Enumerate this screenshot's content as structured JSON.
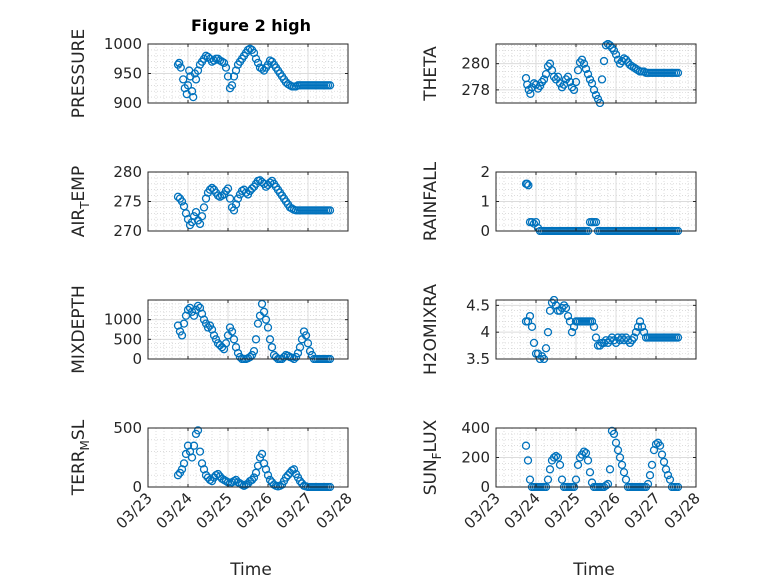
{
  "figure": {
    "title": "Figure 2 high",
    "marker_color": "#0072BD",
    "time_ticks": [
      "03/23",
      "03/24",
      "03/25",
      "03/26",
      "03/27",
      "03/28"
    ],
    "time_label": "Time"
  },
  "chart_data": [
    {
      "type": "scatter",
      "name": "PRESSURE",
      "ylabel": "PRESSURE",
      "ylim": [
        900,
        1000
      ],
      "yticks": [
        900,
        950,
        1000
      ],
      "xlim": [
        0,
        5
      ],
      "grid": true,
      "minor_grid": true,
      "show_x_ticklabels": false,
      "x": [
        0.75,
        0.78,
        0.82,
        0.88,
        0.92,
        0.97,
        1.0,
        1.03,
        1.06,
        1.1,
        1.13,
        1.17,
        1.2,
        1.25,
        1.3,
        1.35,
        1.4,
        1.45,
        1.5,
        1.55,
        1.6,
        1.65,
        1.7,
        1.75,
        1.8,
        1.85,
        1.9,
        1.95,
        2.0,
        2.05,
        2.1,
        2.15,
        2.2,
        2.25,
        2.3,
        2.35,
        2.4,
        2.45,
        2.5,
        2.55,
        2.6,
        2.65,
        2.7,
        2.75,
        2.8,
        2.85,
        2.9,
        2.95,
        3.0,
        3.05,
        3.1,
        3.15,
        3.2,
        3.25,
        3.3,
        3.35,
        3.4,
        3.45,
        3.5,
        3.55,
        3.6,
        3.65,
        3.7,
        3.75,
        3.8,
        3.85,
        3.9,
        3.95,
        4.0,
        4.05,
        4.1,
        4.15,
        4.2,
        4.25,
        4.3,
        4.35,
        4.4,
        4.45,
        4.5,
        4.55
      ],
      "y": [
        965,
        968,
        960,
        940,
        925,
        915,
        930,
        955,
        945,
        920,
        910,
        950,
        940,
        955,
        965,
        970,
        975,
        980,
        978,
        975,
        970,
        972,
        975,
        975,
        972,
        970,
        968,
        960,
        945,
        925,
        930,
        945,
        955,
        965,
        970,
        975,
        980,
        985,
        990,
        992,
        990,
        985,
        975,
        968,
        960,
        958,
        955,
        960,
        965,
        972,
        970,
        965,
        960,
        955,
        950,
        945,
        940,
        935,
        932,
        930,
        928,
        928,
        928,
        930,
        930,
        930,
        930,
        930,
        930,
        930,
        930,
        930,
        930,
        930,
        930,
        930,
        930,
        930,
        930,
        930
      ]
    },
    {
      "type": "scatter",
      "name": "THETA",
      "ylabel": "THETA",
      "ylim": [
        277,
        281.5
      ],
      "yticks": [
        278,
        280
      ],
      "xlim": [
        0,
        5
      ],
      "grid": true,
      "minor_grid": true,
      "show_x_ticklabels": false,
      "x": [
        0.75,
        0.78,
        0.82,
        0.86,
        0.9,
        0.95,
        1.0,
        1.05,
        1.1,
        1.15,
        1.2,
        1.25,
        1.3,
        1.35,
        1.4,
        1.45,
        1.5,
        1.55,
        1.6,
        1.65,
        1.7,
        1.75,
        1.8,
        1.85,
        1.9,
        1.95,
        2.0,
        2.05,
        2.1,
        2.15,
        2.2,
        2.25,
        2.3,
        2.35,
        2.4,
        2.45,
        2.5,
        2.55,
        2.6,
        2.65,
        2.7,
        2.75,
        2.8,
        2.85,
        2.9,
        2.95,
        3.0,
        3.05,
        3.1,
        3.15,
        3.2,
        3.25,
        3.3,
        3.35,
        3.4,
        3.45,
        3.5,
        3.55,
        3.6,
        3.65,
        3.7,
        3.75,
        3.8,
        3.85,
        3.9,
        3.95,
        4.0,
        4.05,
        4.1,
        4.15,
        4.2,
        4.25,
        4.3,
        4.35,
        4.4,
        4.45,
        4.5,
        4.55
      ],
      "y": [
        278.9,
        278.4,
        278.0,
        277.7,
        278.2,
        278.5,
        278.4,
        278.1,
        278.3,
        278.6,
        278.8,
        279.2,
        279.8,
        280.0,
        279.5,
        279.0,
        278.8,
        279.0,
        278.5,
        278.2,
        278.4,
        278.8,
        279.0,
        278.6,
        278.2,
        278.0,
        278.6,
        279.5,
        280.1,
        280.3,
        280.0,
        279.6,
        279.2,
        278.8,
        278.5,
        278.0,
        277.6,
        277.3,
        277.0,
        278.8,
        280.2,
        281.4,
        281.5,
        281.4,
        281.2,
        281.0,
        280.7,
        280.3,
        280.0,
        280.2,
        280.4,
        280.3,
        280.1,
        279.9,
        279.8,
        279.7,
        279.6,
        279.5,
        279.4,
        279.4,
        279.4,
        279.3,
        279.3,
        279.3,
        279.3,
        279.3,
        279.3,
        279.3,
        279.3,
        279.3,
        279.3,
        279.3,
        279.3,
        279.3,
        279.3,
        279.3,
        279.3,
        279.3
      ]
    },
    {
      "type": "scatter",
      "name": "AIR_TEMP",
      "ylabel": "AIR_TEMP",
      "ylim": [
        270,
        280
      ],
      "yticks": [
        270,
        275,
        280
      ],
      "xlim": [
        0,
        5
      ],
      "grid": true,
      "minor_grid": true,
      "show_x_ticklabels": false,
      "x": [
        0.75,
        0.8,
        0.85,
        0.9,
        0.95,
        1.0,
        1.05,
        1.1,
        1.15,
        1.2,
        1.25,
        1.3,
        1.35,
        1.4,
        1.45,
        1.5,
        1.55,
        1.6,
        1.65,
        1.7,
        1.75,
        1.8,
        1.85,
        1.9,
        1.95,
        2.0,
        2.05,
        2.1,
        2.15,
        2.2,
        2.25,
        2.3,
        2.35,
        2.4,
        2.45,
        2.5,
        2.55,
        2.6,
        2.65,
        2.7,
        2.75,
        2.8,
        2.85,
        2.9,
        2.95,
        3.0,
        3.05,
        3.1,
        3.15,
        3.2,
        3.25,
        3.3,
        3.35,
        3.4,
        3.45,
        3.5,
        3.55,
        3.6,
        3.65,
        3.7,
        3.75,
        3.8,
        3.85,
        3.9,
        3.95,
        4.0,
        4.05,
        4.1,
        4.15,
        4.2,
        4.25,
        4.3,
        4.35,
        4.4,
        4.45,
        4.5,
        4.55
      ],
      "y": [
        275.8,
        275.5,
        275.0,
        274.2,
        273.0,
        272.0,
        271.0,
        271.5,
        272.5,
        273.2,
        271.8,
        271.2,
        272.5,
        274.0,
        275.5,
        276.5,
        277.0,
        277.3,
        277.0,
        276.5,
        276.0,
        275.8,
        276.0,
        276.2,
        276.8,
        277.2,
        275.5,
        274.0,
        273.5,
        274.5,
        275.5,
        276.2,
        276.8,
        277.0,
        276.5,
        276.2,
        276.8,
        277.2,
        277.5,
        278.0,
        278.5,
        278.6,
        278.3,
        278.0,
        277.5,
        277.8,
        278.2,
        278.5,
        278.0,
        277.5,
        277.0,
        276.5,
        276.0,
        275.5,
        275.0,
        274.5,
        274.0,
        273.8,
        273.6,
        273.5,
        273.5,
        273.5,
        273.5,
        273.5,
        273.5,
        273.5,
        273.5,
        273.5,
        273.5,
        273.5,
        273.5,
        273.5,
        273.5,
        273.5,
        273.5,
        273.5,
        273.5
      ]
    },
    {
      "type": "scatter",
      "name": "RAINFALL",
      "ylabel": "RAINFALL",
      "ylim": [
        0,
        2
      ],
      "yticks": [
        0,
        1,
        2
      ],
      "xlim": [
        0,
        5
      ],
      "grid": true,
      "minor_grid": true,
      "show_x_ticklabels": false,
      "x": [
        0.75,
        0.78,
        0.81,
        0.85,
        0.9,
        0.95,
        1.0,
        1.05,
        1.1,
        1.15,
        1.2,
        1.25,
        1.3,
        1.35,
        1.4,
        1.45,
        1.5,
        1.55,
        1.6,
        1.65,
        1.7,
        1.75,
        1.8,
        1.85,
        1.9,
        1.95,
        2.0,
        2.05,
        2.1,
        2.15,
        2.2,
        2.25,
        2.3,
        2.35,
        2.4,
        2.45,
        2.5,
        2.55,
        2.6,
        2.65,
        2.7,
        2.75,
        2.8,
        2.85,
        2.9,
        2.95,
        3.0,
        3.05,
        3.1,
        3.15,
        3.2,
        3.25,
        3.3,
        3.35,
        3.4,
        3.45,
        3.5,
        3.55,
        3.6,
        3.65,
        3.7,
        3.75,
        3.8,
        3.85,
        3.9,
        3.95,
        4.0,
        4.05,
        4.1,
        4.15,
        4.2,
        4.25,
        4.3,
        4.35,
        4.4,
        4.45,
        4.5,
        4.55
      ],
      "y": [
        1.6,
        1.6,
        1.55,
        0.3,
        0.3,
        0.25,
        0.3,
        0.1,
        0.0,
        0.0,
        0.0,
        0.0,
        0.0,
        0.0,
        0.0,
        0.0,
        0.0,
        0.0,
        0.0,
        0.0,
        0.0,
        0.0,
        0.0,
        0.0,
        0.0,
        0.0,
        0.0,
        0.0,
        0.0,
        0.0,
        0.0,
        0.0,
        0.0,
        0.3,
        0.3,
        0.3,
        0.3,
        0.0,
        0.0,
        0.0,
        0.0,
        0.0,
        0.0,
        0.0,
        0.0,
        0.0,
        0.0,
        0.0,
        0.0,
        0.0,
        0.0,
        0.0,
        0.0,
        0.0,
        0.0,
        0.0,
        0.0,
        0.0,
        0.0,
        0.0,
        0.0,
        0.0,
        0.0,
        0.0,
        0.0,
        0.0,
        0.0,
        0.0,
        0.0,
        0.0,
        0.0,
        0.0,
        0.0,
        0.0,
        0.0,
        0.0,
        0.0,
        0.0
      ]
    },
    {
      "type": "scatter",
      "name": "MIXDEPTH",
      "ylabel": "MIXDEPTH",
      "ylim": [
        0,
        1500
      ],
      "yticks": [
        0,
        500,
        1000
      ],
      "xlim": [
        0,
        5
      ],
      "grid": true,
      "minor_grid": true,
      "show_x_ticklabels": false,
      "x": [
        0.75,
        0.8,
        0.85,
        0.9,
        0.95,
        1.0,
        1.05,
        1.1,
        1.15,
        1.2,
        1.25,
        1.3,
        1.35,
        1.4,
        1.45,
        1.5,
        1.55,
        1.6,
        1.65,
        1.7,
        1.75,
        1.8,
        1.85,
        1.9,
        1.95,
        2.0,
        2.05,
        2.1,
        2.15,
        2.2,
        2.25,
        2.3,
        2.35,
        2.4,
        2.45,
        2.5,
        2.55,
        2.6,
        2.65,
        2.7,
        2.75,
        2.8,
        2.85,
        2.9,
        2.95,
        3.0,
        3.05,
        3.1,
        3.15,
        3.2,
        3.25,
        3.3,
        3.35,
        3.4,
        3.45,
        3.5,
        3.55,
        3.6,
        3.65,
        3.7,
        3.75,
        3.8,
        3.85,
        3.9,
        3.95,
        4.0,
        4.05,
        4.1,
        4.15,
        4.2,
        4.25,
        4.3,
        4.35,
        4.4,
        4.45,
        4.5,
        4.55
      ],
      "y": [
        850,
        700,
        600,
        900,
        1100,
        1250,
        1300,
        1200,
        1100,
        1250,
        1350,
        1300,
        1150,
        1000,
        900,
        800,
        850,
        750,
        600,
        500,
        400,
        350,
        300,
        250,
        400,
        600,
        800,
        700,
        500,
        300,
        150,
        50,
        0,
        0,
        0,
        20,
        50,
        100,
        200,
        500,
        900,
        1100,
        1400,
        1200,
        1000,
        800,
        500,
        300,
        100,
        50,
        0,
        0,
        0,
        50,
        100,
        80,
        50,
        30,
        0,
        50,
        150,
        300,
        500,
        700,
        600,
        400,
        200,
        100,
        0,
        0,
        0,
        0,
        0,
        0,
        0,
        0,
        0
      ]
    },
    {
      "type": "scatter",
      "name": "H2OMIXRA",
      "ylabel": "H2OMIXRA",
      "ylim": [
        3.5,
        4.6
      ],
      "yticks": [
        3.5,
        4,
        4.5
      ],
      "xlim": [
        0,
        5
      ],
      "grid": true,
      "minor_grid": true,
      "show_x_ticklabels": false,
      "x": [
        0.75,
        0.8,
        0.85,
        0.9,
        0.95,
        1.0,
        1.05,
        1.1,
        1.15,
        1.2,
        1.25,
        1.3,
        1.35,
        1.4,
        1.45,
        1.5,
        1.55,
        1.6,
        1.65,
        1.7,
        1.75,
        1.8,
        1.85,
        1.9,
        1.95,
        2.0,
        2.05,
        2.1,
        2.15,
        2.2,
        2.25,
        2.3,
        2.35,
        2.4,
        2.45,
        2.5,
        2.55,
        2.6,
        2.65,
        2.7,
        2.75,
        2.8,
        2.85,
        2.9,
        2.95,
        3.0,
        3.05,
        3.1,
        3.15,
        3.2,
        3.25,
        3.3,
        3.35,
        3.4,
        3.45,
        3.5,
        3.55,
        3.6,
        3.65,
        3.7,
        3.75,
        3.8,
        3.85,
        3.9,
        3.95,
        4.0,
        4.05,
        4.1,
        4.15,
        4.2,
        4.25,
        4.3,
        4.35,
        4.4,
        4.45,
        4.5,
        4.55
      ],
      "y": [
        4.2,
        4.2,
        4.3,
        4.1,
        3.8,
        3.6,
        3.6,
        3.5,
        3.55,
        3.5,
        3.7,
        4.0,
        4.4,
        4.55,
        4.6,
        4.5,
        4.4,
        4.4,
        4.45,
        4.5,
        4.45,
        4.3,
        4.2,
        4.0,
        4.1,
        4.2,
        4.2,
        4.2,
        4.2,
        4.2,
        4.2,
        4.2,
        4.2,
        4.2,
        4.1,
        3.9,
        3.75,
        3.75,
        3.8,
        3.8,
        3.85,
        3.8,
        3.85,
        3.9,
        3.85,
        3.8,
        3.9,
        3.85,
        3.9,
        3.85,
        3.9,
        3.85,
        3.8,
        3.85,
        3.9,
        4.0,
        4.1,
        4.2,
        4.1,
        4.0,
        3.9,
        3.9,
        3.9,
        3.9,
        3.9,
        3.9,
        3.9,
        3.9,
        3.9,
        3.9,
        3.9,
        3.9,
        3.9,
        3.9,
        3.9,
        3.9,
        3.9
      ]
    },
    {
      "type": "scatter",
      "name": "TERR_MSL",
      "ylabel": "TERR_MSL",
      "ylim": [
        0,
        500
      ],
      "yticks": [
        0,
        500
      ],
      "xlim": [
        0,
        5
      ],
      "grid": true,
      "minor_grid": true,
      "show_x_ticklabels": true,
      "x": [
        0.75,
        0.8,
        0.85,
        0.9,
        0.95,
        1.0,
        1.05,
        1.1,
        1.15,
        1.2,
        1.25,
        1.3,
        1.35,
        1.4,
        1.45,
        1.5,
        1.55,
        1.6,
        1.65,
        1.7,
        1.75,
        1.8,
        1.85,
        1.9,
        1.95,
        2.0,
        2.05,
        2.1,
        2.15,
        2.2,
        2.25,
        2.3,
        2.35,
        2.4,
        2.45,
        2.5,
        2.55,
        2.6,
        2.65,
        2.7,
        2.75,
        2.8,
        2.85,
        2.9,
        2.95,
        3.0,
        3.05,
        3.1,
        3.15,
        3.2,
        3.25,
        3.3,
        3.35,
        3.4,
        3.45,
        3.5,
        3.55,
        3.6,
        3.65,
        3.7,
        3.75,
        3.8,
        3.85,
        3.9,
        3.95,
        4.0,
        4.05,
        4.1,
        4.15,
        4.2,
        4.25,
        4.3,
        4.35,
        4.4,
        4.45,
        4.5,
        4.55
      ],
      "y": [
        100,
        120,
        150,
        200,
        280,
        350,
        300,
        250,
        350,
        450,
        480,
        300,
        200,
        150,
        100,
        80,
        60,
        50,
        80,
        100,
        110,
        90,
        70,
        60,
        50,
        40,
        30,
        40,
        50,
        60,
        40,
        30,
        20,
        10,
        20,
        30,
        50,
        60,
        80,
        120,
        180,
        250,
        280,
        200,
        150,
        100,
        60,
        40,
        20,
        10,
        5,
        10,
        20,
        50,
        80,
        100,
        120,
        140,
        150,
        110,
        80,
        50,
        30,
        10,
        5,
        0,
        0,
        0,
        0,
        0,
        0,
        0,
        0,
        0,
        0,
        0,
        0
      ]
    },
    {
      "type": "scatter",
      "name": "SUN_FLUX",
      "ylabel": "SUN_FLUX",
      "ylim": [
        0,
        400
      ],
      "yticks": [
        0,
        200,
        400
      ],
      "xlim": [
        0,
        5
      ],
      "grid": true,
      "minor_grid": true,
      "show_x_ticklabels": true,
      "x": [
        0.75,
        0.8,
        0.85,
        0.9,
        0.95,
        1.0,
        1.05,
        1.1,
        1.15,
        1.2,
        1.25,
        1.3,
        1.35,
        1.4,
        1.45,
        1.5,
        1.55,
        1.6,
        1.65,
        1.7,
        1.75,
        1.8,
        1.85,
        1.9,
        1.95,
        2.0,
        2.05,
        2.1,
        2.15,
        2.2,
        2.25,
        2.3,
        2.35,
        2.4,
        2.45,
        2.5,
        2.55,
        2.6,
        2.65,
        2.7,
        2.75,
        2.8,
        2.85,
        2.9,
        2.95,
        3.0,
        3.05,
        3.1,
        3.15,
        3.2,
        3.25,
        3.3,
        3.35,
        3.4,
        3.45,
        3.5,
        3.55,
        3.6,
        3.65,
        3.7,
        3.75,
        3.8,
        3.85,
        3.9,
        3.95,
        4.0,
        4.05,
        4.1,
        4.15,
        4.2,
        4.25,
        4.3,
        4.35,
        4.4,
        4.45,
        4.5,
        4.55
      ],
      "y": [
        280,
        180,
        50,
        0,
        0,
        0,
        0,
        0,
        0,
        0,
        0,
        50,
        120,
        180,
        200,
        210,
        200,
        150,
        50,
        0,
        0,
        0,
        0,
        0,
        0,
        50,
        150,
        200,
        220,
        240,
        230,
        180,
        100,
        30,
        0,
        0,
        0,
        0,
        0,
        0,
        10,
        20,
        120,
        380,
        360,
        300,
        250,
        200,
        150,
        100,
        50,
        0,
        0,
        0,
        0,
        0,
        0,
        0,
        0,
        0,
        0,
        20,
        80,
        150,
        250,
        290,
        300,
        280,
        220,
        170,
        120,
        80,
        50,
        0,
        0,
        0,
        0
      ]
    }
  ]
}
